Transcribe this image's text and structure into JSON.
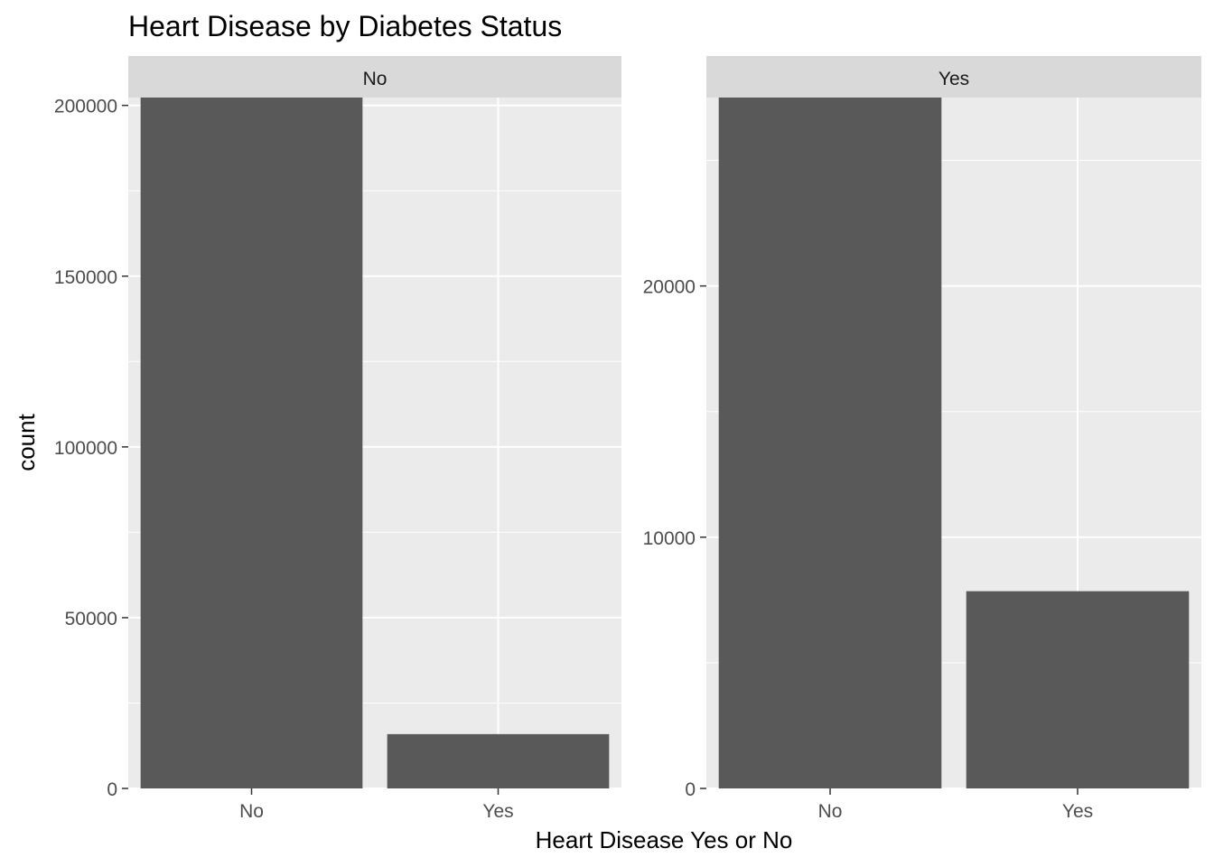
{
  "chart_data": {
    "type": "bar",
    "title": "Heart Disease by Diabetes Status",
    "xlabel": "Heart Disease Yes or No",
    "ylabel": "count",
    "categories": [
      "No",
      "Yes"
    ],
    "facet_variable_levels": [
      "No",
      "Yes"
    ],
    "grid": true,
    "colors": {
      "bar": "#595959",
      "panel_bg": "#ebebeb",
      "strip_bg": "#d9d9d9",
      "grid_line": "#ffffff"
    },
    "panels": [
      {
        "strip_label": "No",
        "categories": [
          "No",
          "Yes"
        ],
        "values": [
          202300,
          15900
        ],
        "ylim": [
          0,
          202300
        ],
        "y_ticks": [
          0,
          50000,
          100000,
          150000,
          200000
        ],
        "y_tick_labels": [
          "0",
          "50000",
          "100000",
          "150000",
          "200000"
        ]
      },
      {
        "strip_label": "Yes",
        "categories": [
          "No",
          "Yes"
        ],
        "values": [
          27500,
          7850
        ],
        "ylim": [
          0,
          27500
        ],
        "y_ticks": [
          0,
          10000,
          20000
        ],
        "y_tick_labels": [
          "0",
          "10000",
          "20000"
        ]
      }
    ]
  }
}
